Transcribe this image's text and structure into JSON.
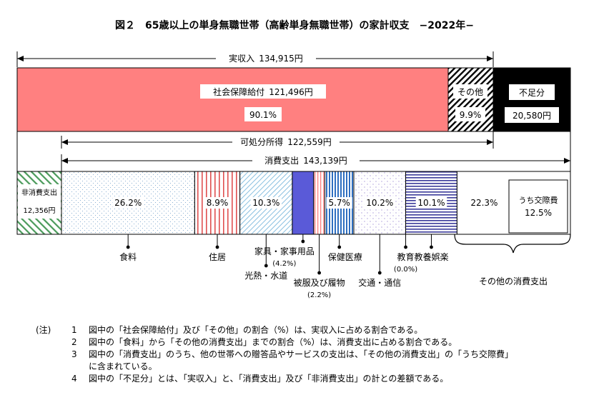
{
  "chart_data": {
    "type": "bar",
    "title": "図２　65歳以上の単身無職世帯（高齢単身無職世帯）の家計収支　−2022年−",
    "income": {
      "label": "実収入",
      "value_text": "134,915円",
      "value": 134915,
      "segments": [
        {
          "key": "social",
          "label": "社会保障給付",
          "value_text": "121,496円",
          "value": 121496,
          "pct_text": "90.1%",
          "color": "#ff8080"
        },
        {
          "key": "other",
          "label": "その他",
          "value_text": "",
          "value": 13419,
          "pct_text": "9.9%",
          "color": "#000000"
        }
      ],
      "deficit": {
        "label": "不足分",
        "value_text": "20,580円",
        "value": 20580,
        "color": "#000000"
      }
    },
    "disposable": {
      "label": "可処分所得",
      "value_text": "122,559円",
      "value": 122559
    },
    "consumption": {
      "label": "消費支出",
      "value_text": "143,139円",
      "value": 143139,
      "non_consumption": {
        "label": "非消費支出",
        "value_text": "12,356円",
        "value": 12356,
        "color": "#4a9a5a"
      },
      "segments": [
        {
          "key": "food",
          "label": "食料",
          "pct_text": "26.2%",
          "pct": 26.2,
          "color": "#6a9ac8"
        },
        {
          "key": "housing",
          "label": "住居",
          "pct_text": "8.9%",
          "pct": 8.9,
          "color": "#e05050"
        },
        {
          "key": "utilities",
          "label": "光熱・水道",
          "pct_text": "10.3%",
          "pct": 10.3,
          "color": "#88bfe0"
        },
        {
          "key": "furniture",
          "label": "家具・家事用品",
          "sub": "(4.2%)",
          "pct_text": "",
          "pct": 4.2,
          "color": "#5a5ad8"
        },
        {
          "key": "clothing",
          "label": "被服及び履物",
          "sub": "(2.2%)",
          "pct_text": "",
          "pct": 2.2,
          "color": "#ff8080"
        },
        {
          "key": "medical",
          "label": "保健医療",
          "pct_text": "5.7%",
          "pct": 5.7,
          "color": "#2f6fc0"
        },
        {
          "key": "transport",
          "label": "交通・通信",
          "pct_text": "10.2%",
          "pct": 10.2,
          "color": "#a898d8"
        },
        {
          "key": "education",
          "label": "教育",
          "sub": "(0.0%)",
          "pct_text": "",
          "pct": 0.0,
          "color": "#ffffff"
        },
        {
          "key": "recreation",
          "label": "教養娯楽",
          "pct_text": "10.1%",
          "pct": 10.1,
          "color": "#3a3a9a"
        },
        {
          "key": "other_consumption",
          "label": "その他の消費支出",
          "pct_text": "22.3%",
          "pct": 22.3,
          "color": "#ffffff"
        }
      ],
      "social_expense": {
        "label": "うち交際費",
        "pct_text": "12.5%",
        "pct": 12.5
      }
    }
  },
  "notes": {
    "mark": "(注)",
    "items": [
      {
        "num": "1",
        "text": "図中の「社会保障給付」及び「その他」の割合（%）は、実収入に占める割合である。"
      },
      {
        "num": "2",
        "text": "図中の「食料」から「その他の消費支出」までの割合（%）は、消費支出に占める割合である。"
      },
      {
        "num": "3",
        "text": "図中の「消費支出」のうち、他の世帯への贈答品やサービスの支出は、「その他の消費支出」の「うち交際費」"
      },
      {
        "num": "",
        "text": "に含まれている。"
      },
      {
        "num": "4",
        "text": "図中の「不足分」とは、「実収入」と、「消費支出」及び「非消費支出」の計との差額である。"
      }
    ]
  }
}
